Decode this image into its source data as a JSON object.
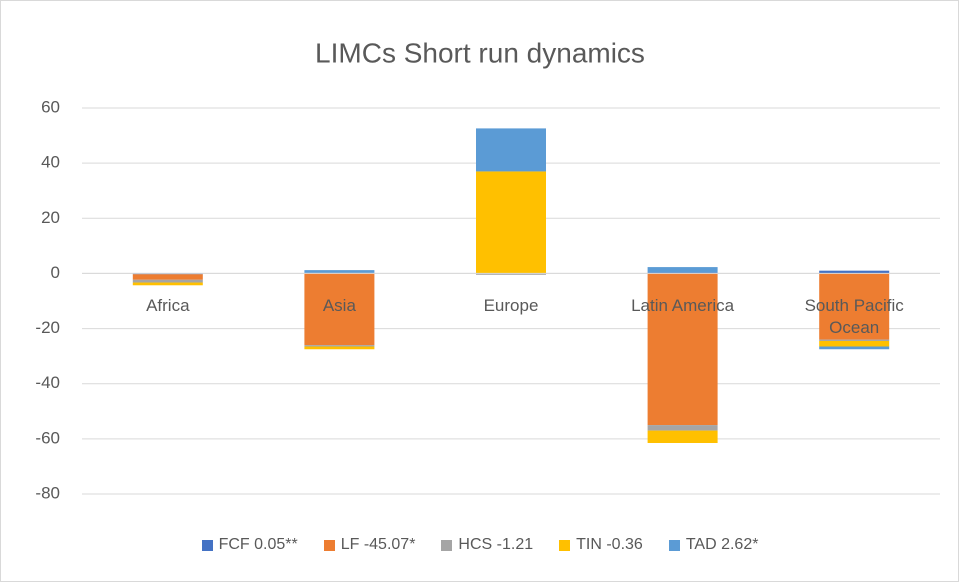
{
  "chart_data": {
    "type": "bar",
    "stacked": true,
    "title": "LIMCs Short run dynamics",
    "categories": [
      "Africa",
      "Asia",
      "Europe",
      "Latin America",
      "South Pacific Ocean"
    ],
    "series": [
      {
        "name": "FCF 0.05**",
        "color": "#4472c4",
        "values": [
          -0.3,
          0.2,
          0,
          0.3,
          1
        ]
      },
      {
        "name": "LF -45.07*",
        "color": "#ed7d31",
        "values": [
          -2,
          -26,
          0,
          -55,
          -24
        ]
      },
      {
        "name": "HCS -1.21",
        "color": "#a5a5a5",
        "values": [
          -1,
          -0.5,
          -0.5,
          -2,
          -0.5
        ]
      },
      {
        "name": "TIN -0.36",
        "color": "#ffc000",
        "values": [
          -1,
          -1,
          37,
          -4.5,
          -2
        ]
      },
      {
        "name": "TAD 2.62*",
        "color": "#5b9bd5",
        "values": [
          0,
          1,
          15.6,
          2,
          -1
        ]
      }
    ],
    "ylim": [
      -80,
      60
    ],
    "yticks": [
      -80,
      -60,
      -40,
      -20,
      0,
      20,
      40,
      60
    ],
    "grid": true,
    "legend": "bottom"
  }
}
